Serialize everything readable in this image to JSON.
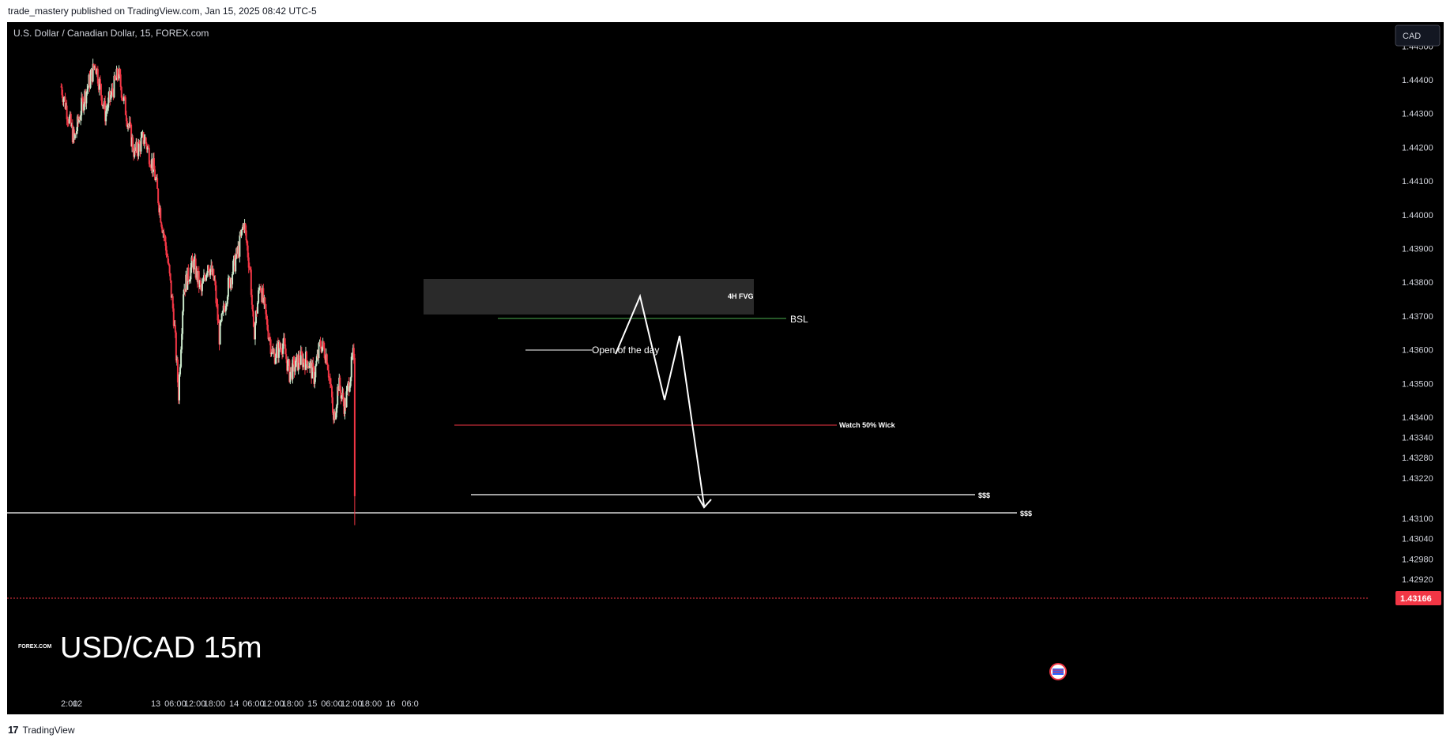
{
  "header": {
    "published_text": "trade_mastery published on TradingView.com, Jan 15, 2025 08:42 UTC-5"
  },
  "footer": {
    "brand": "TradingView"
  },
  "chart": {
    "symbol_title": "U.S. Dollar / Canadian Dollar, 15, FOREX.com",
    "currency_button": "CAD",
    "watermark": "USD/CAD 15m",
    "broker_logo": "FOREX.COM",
    "last_price_label": "1.43166",
    "colors": {
      "up": "#c8e6c9",
      "down": "#f23645",
      "background": "#000000",
      "text": "#d1d4dc"
    }
  },
  "chart_data": {
    "type": "candlestick",
    "title": "U.S. Dollar / Canadian Dollar, 15, FOREX.com",
    "price_scale_ticks": [
      {
        "label": "1.44500",
        "value": 1.445
      },
      {
        "label": "1.44400",
        "value": 1.444
      },
      {
        "label": "1.44300",
        "value": 1.443
      },
      {
        "label": "1.44200",
        "value": 1.442
      },
      {
        "label": "1.44100",
        "value": 1.441
      },
      {
        "label": "1.44000",
        "value": 1.44
      },
      {
        "label": "1.43900",
        "value": 1.439
      },
      {
        "label": "1.43800",
        "value": 1.438
      },
      {
        "label": "1.43700",
        "value": 1.437
      },
      {
        "label": "1.43600",
        "value": 1.436
      },
      {
        "label": "1.43500",
        "value": 1.435
      },
      {
        "label": "1.43400",
        "value": 1.434
      },
      {
        "label": "1.43340",
        "value": 1.4334
      },
      {
        "label": "1.43280",
        "value": 1.4328
      },
      {
        "label": "1.43220",
        "value": 1.4322
      },
      {
        "label": "1.43100",
        "value": 1.431
      },
      {
        "label": "1.43040",
        "value": 1.4304
      },
      {
        "label": "1.42980",
        "value": 1.4298
      },
      {
        "label": "1.42920",
        "value": 1.4292
      }
    ],
    "time_axis_ticks": [
      {
        "label": "2:00",
        "t": -10
      },
      {
        "label": "12",
        "t": 0
      },
      {
        "label": "13",
        "t": 96
      },
      {
        "label": "06:00",
        "t": 120
      },
      {
        "label": "12:00",
        "t": 144
      },
      {
        "label": "18:00",
        "t": 168
      },
      {
        "label": "14",
        "t": 192
      },
      {
        "label": "06:00",
        "t": 216
      },
      {
        "label": "12:00",
        "t": 240
      },
      {
        "label": "18:00",
        "t": 264
      },
      {
        "label": "15",
        "t": 288
      },
      {
        "label": "06:00",
        "t": 312
      },
      {
        "label": "12:00",
        "t": 336
      },
      {
        "label": "18:00",
        "t": 360
      },
      {
        "label": "16",
        "t": 384
      },
      {
        "label": "06:0",
        "t": 408
      }
    ],
    "last_price": 1.43166,
    "key_points": [
      {
        "t": -20,
        "price": 1.4438
      },
      {
        "t": -4,
        "price": 1.4422
      },
      {
        "t": 6,
        "price": 1.4433
      },
      {
        "t": 22,
        "price": 1.4445
      },
      {
        "t": 34,
        "price": 1.443
      },
      {
        "t": 50,
        "price": 1.4442
      },
      {
        "t": 70,
        "price": 1.4418
      },
      {
        "t": 82,
        "price": 1.4423
      },
      {
        "t": 94,
        "price": 1.4413
      },
      {
        "t": 104,
        "price": 1.4397
      },
      {
        "t": 110,
        "price": 1.4388
      },
      {
        "t": 118,
        "price": 1.437
      },
      {
        "t": 124,
        "price": 1.4347
      },
      {
        "t": 130,
        "price": 1.4378
      },
      {
        "t": 142,
        "price": 1.4386
      },
      {
        "t": 152,
        "price": 1.4377
      },
      {
        "t": 160,
        "price": 1.4386
      },
      {
        "t": 168,
        "price": 1.438
      },
      {
        "t": 174,
        "price": 1.4364
      },
      {
        "t": 184,
        "price": 1.4378
      },
      {
        "t": 192,
        "price": 1.4385
      },
      {
        "t": 198,
        "price": 1.439
      },
      {
        "t": 204,
        "price": 1.4398
      },
      {
        "t": 212,
        "price": 1.4383
      },
      {
        "t": 216,
        "price": 1.4364
      },
      {
        "t": 224,
        "price": 1.438
      },
      {
        "t": 232,
        "price": 1.4368
      },
      {
        "t": 240,
        "price": 1.4358
      },
      {
        "t": 252,
        "price": 1.4362
      },
      {
        "t": 260,
        "price": 1.4353
      },
      {
        "t": 272,
        "price": 1.4357
      },
      {
        "t": 282,
        "price": 1.4357
      },
      {
        "t": 290,
        "price": 1.4352
      },
      {
        "t": 298,
        "price": 1.4362
      },
      {
        "t": 306,
        "price": 1.4358
      },
      {
        "t": 312,
        "price": 1.4345
      },
      {
        "t": 314,
        "price": 1.4338
      },
      {
        "t": 320,
        "price": 1.435
      },
      {
        "t": 328,
        "price": 1.4343
      },
      {
        "t": 334,
        "price": 1.4352
      },
      {
        "t": 338,
        "price": 1.4358
      },
      {
        "t": 340,
        "price": 1.4352
      },
      {
        "t": 341,
        "price": 1.43166
      }
    ]
  },
  "annotations": {
    "fvg_label": "4H FVG",
    "bsl_label": "BSL",
    "open_label": "Open of the day",
    "watch_label": "Watch 50% Wick",
    "sss_label_1": "$$$",
    "sss_label_2": "$$$"
  }
}
